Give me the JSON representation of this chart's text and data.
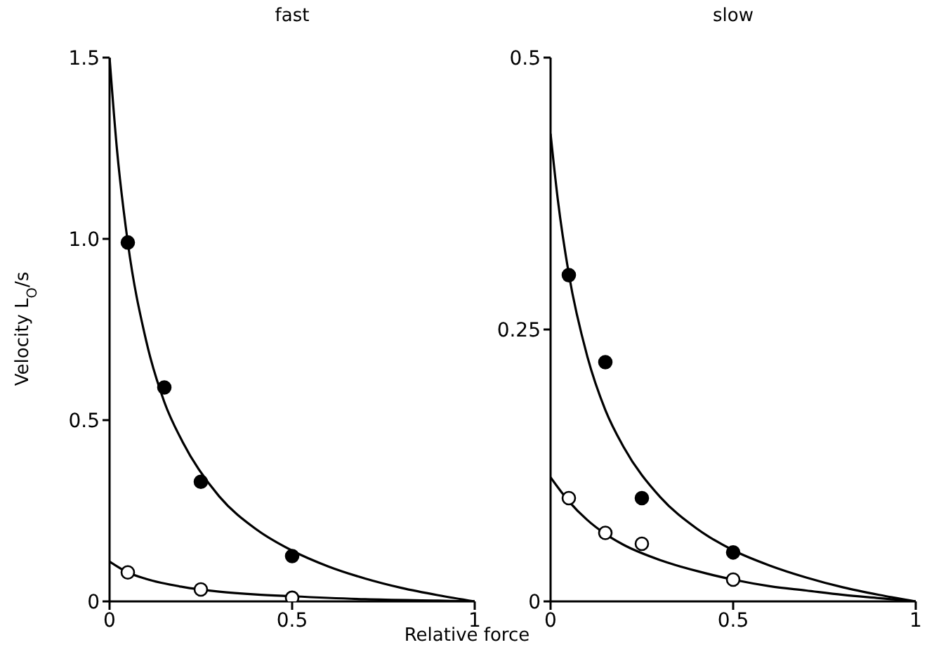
{
  "chart_data": [
    {
      "type": "scatter",
      "title": "fast",
      "xlabel": "Relative force",
      "ylabel": "Velocity L$_{O}$/s",
      "xlim": [
        0,
        1
      ],
      "xticks": [
        0,
        0.5,
        1
      ],
      "ylim": [
        0,
        1.5
      ],
      "yticks": [
        0,
        0.5,
        {
          "value": 1,
          "label": "1.0"
        },
        1.5
      ],
      "grid": false,
      "legend": false,
      "marker": "circle",
      "series": [
        {
          "type": "line",
          "marker": "none",
          "color": "#000000",
          "x": [
            0,
            0.02,
            0.05,
            0.1,
            0.15,
            0.2,
            0.3,
            0.4,
            0.5,
            0.6,
            0.7,
            0.8,
            0.9,
            1
          ],
          "values": [
            1.5,
            1.25,
            0.99,
            0.72,
            0.55,
            0.44,
            0.29,
            0.2,
            0.14,
            0.096,
            0.063,
            0.037,
            0.017,
            0
          ]
        },
        {
          "type": "line",
          "marker": "none",
          "color": "#000000",
          "x": [
            0,
            0.05,
            0.1,
            0.2,
            0.3,
            0.4,
            0.5,
            0.7,
            0.9,
            1
          ],
          "values": [
            0.11,
            0.08,
            0.062,
            0.04,
            0.027,
            0.019,
            0.014,
            0.006,
            0.002,
            0
          ]
        },
        {
          "color": "#000000",
          "x": [
            0.05,
            0.15,
            0.25,
            0.5
          ],
          "values": [
            0.99,
            0.59,
            0.33,
            0.125
          ]
        },
        {
          "color": "#ffffff",
          "x": [
            0.05,
            0.25,
            0.5
          ],
          "values": [
            0.08,
            0.033,
            0.01
          ]
        }
      ]
    },
    {
      "type": "scatter",
      "title": "slow",
      "xlim": [
        0,
        1
      ],
      "xticks": [
        0,
        0.5,
        1
      ],
      "ylim": [
        0,
        0.5
      ],
      "yticks": [
        0,
        0.25,
        0.5
      ],
      "grid": false,
      "legend": false,
      "marker": "circle",
      "series": [
        {
          "type": "line",
          "marker": "none",
          "color": "#000000",
          "x": [
            0,
            0.02,
            0.05,
            0.1,
            0.15,
            0.2,
            0.3,
            0.4,
            0.5,
            0.6,
            0.7,
            0.8,
            0.9,
            1
          ],
          "values": [
            0.43,
            0.369,
            0.301,
            0.226,
            0.176,
            0.142,
            0.096,
            0.067,
            0.047,
            0.033,
            0.022,
            0.013,
            0.006,
            0
          ]
        },
        {
          "type": "line",
          "marker": "none",
          "color": "#000000",
          "x": [
            0,
            0.05,
            0.1,
            0.15,
            0.2,
            0.3,
            0.4,
            0.5,
            0.6,
            0.7,
            0.8,
            0.9,
            1
          ],
          "values": [
            0.114,
            0.092,
            0.075,
            0.062,
            0.052,
            0.038,
            0.028,
            0.02,
            0.014,
            0.01,
            0.006,
            0.003,
            0
          ]
        },
        {
          "color": "#000000",
          "x": [
            0.05,
            0.15,
            0.25,
            0.5
          ],
          "values": [
            0.3,
            0.22,
            0.095,
            0.045
          ]
        },
        {
          "color": "#ffffff",
          "x": [
            0.05,
            0.15,
            0.25,
            0.5
          ],
          "values": [
            0.095,
            0.063,
            0.053,
            0.02
          ]
        }
      ]
    }
  ]
}
